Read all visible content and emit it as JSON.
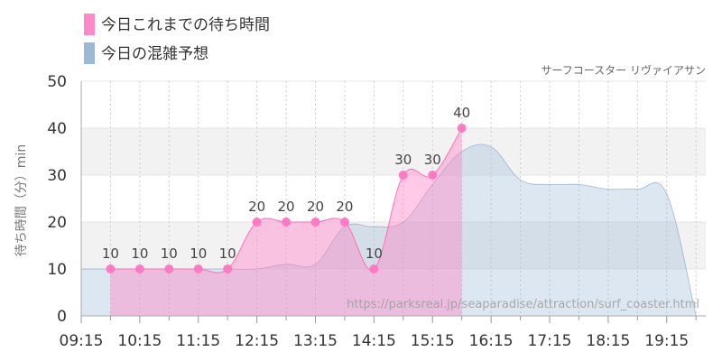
{
  "chart_data": {
    "type": "area",
    "title": "サーフコースター リヴァイアサン",
    "ylabel": "待ち時間（分）min",
    "ylim": [
      0,
      50
    ],
    "yticks": [
      "0",
      "10",
      "20",
      "30",
      "40",
      "50"
    ],
    "xticks": [
      "09:15",
      "10:15",
      "11:15",
      "12:15",
      "13:15",
      "14:15",
      "15:15",
      "16:15",
      "17:15",
      "18:15",
      "19:15"
    ],
    "x_range_minutes": [
      555,
      1195
    ],
    "grid": true,
    "legend_position": "top-left",
    "watermark": "https://parksreal.jp/seaparadise/attraction/surf_coaster.html",
    "series": [
      {
        "name": "今日これまでの待ち時間",
        "color": "#ff88c9",
        "times": [
          "09:45",
          "10:15",
          "10:45",
          "11:15",
          "11:45",
          "12:15",
          "12:45",
          "13:15",
          "13:45",
          "14:15",
          "14:45",
          "15:15",
          "15:45"
        ],
        "values": [
          10,
          10,
          10,
          10,
          10,
          20,
          20,
          20,
          20,
          10,
          30,
          30,
          40
        ]
      },
      {
        "name": "今日の混雑予想",
        "color": "#9bb9d6",
        "times": [
          "09:15",
          "09:45",
          "10:15",
          "10:45",
          "11:15",
          "11:45",
          "12:15",
          "12:45",
          "13:15",
          "13:45",
          "14:15",
          "14:45",
          "15:15",
          "15:45",
          "16:15",
          "16:45",
          "17:15",
          "17:45",
          "18:15",
          "18:45",
          "19:15",
          "19:45"
        ],
        "values": [
          10,
          10,
          10,
          10,
          10,
          10,
          10,
          11,
          11,
          19,
          19,
          20,
          28,
          35,
          36,
          29,
          28,
          28,
          27,
          27,
          26,
          0
        ]
      }
    ]
  }
}
